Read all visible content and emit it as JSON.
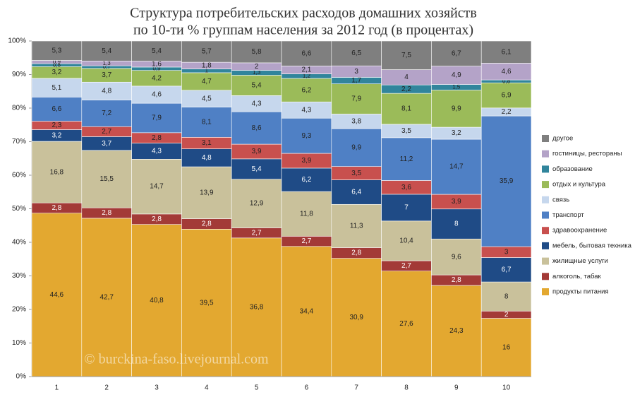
{
  "chart_data": {
    "type": "bar",
    "stacked": "percent",
    "title": "Структура потребительских расходов домашних хозяйств",
    "subtitle": "по 10-ти % группам населения за 2012 год (в процентах)",
    "watermark": "© burckina-faso.livejournal.com",
    "categories": [
      "1",
      "2",
      "3",
      "4",
      "5",
      "6",
      "7",
      "8",
      "9",
      "10"
    ],
    "ylim": [
      0,
      100
    ],
    "yticks": [
      {
        "value": 0,
        "label": "0%"
      },
      {
        "value": 10,
        "label": "10%"
      },
      {
        "value": 20,
        "label": "20%"
      },
      {
        "value": 30,
        "label": "30%"
      },
      {
        "value": 40,
        "label": "40%"
      },
      {
        "value": 50,
        "label": "50%"
      },
      {
        "value": 60,
        "label": "60%"
      },
      {
        "value": 70,
        "label": "70%"
      },
      {
        "value": 80,
        "label": "80%"
      },
      {
        "value": 90,
        "label": "90%"
      },
      {
        "value": 100,
        "label": "100%"
      }
    ],
    "legend": "right",
    "series": [
      {
        "name": "продукты питания",
        "color": "#e3a830",
        "values": [
          44.6,
          42.7,
          40.8,
          39.5,
          36.8,
          34.4,
          30.9,
          27.6,
          24.3,
          16
        ],
        "value_labels": [
          "44,6",
          "42,7",
          "40,8",
          "39,5",
          "36,8",
          "34,4",
          "30,9",
          "27,6",
          "24,3",
          "16"
        ]
      },
      {
        "name": "алкоголь, табак",
        "color": "#a33a37",
        "values": [
          2.8,
          2.8,
          2.8,
          2.8,
          2.7,
          2.7,
          2.8,
          2.7,
          2.8,
          2
        ],
        "value_labels": [
          "2,8",
          "2,8",
          "2,8",
          "2,8",
          "2,7",
          "2,7",
          "2,8",
          "2,7",
          "2,8",
          "2"
        ]
      },
      {
        "name": "жилищные услуги",
        "color": "#c9c19b",
        "values": [
          16.8,
          15.5,
          14.7,
          13.9,
          12.9,
          11.8,
          11.3,
          10.4,
          9.6,
          8
        ],
        "value_labels": [
          "16,8",
          "15,5",
          "14,7",
          "13,9",
          "12,9",
          "11,8",
          "11,3",
          "10,4",
          "9,6",
          "8"
        ]
      },
      {
        "name": "мебель, бытовая техника",
        "color": "#1f4b86",
        "values": [
          3.2,
          3.7,
          4.3,
          4.8,
          5.4,
          6.2,
          6.4,
          7,
          8,
          6.7
        ],
        "value_labels": [
          "3,2",
          "3,7",
          "4,3",
          "4,8",
          "5,4",
          "6,2",
          "6,4",
          "7",
          "8",
          "6,7"
        ]
      },
      {
        "name": "здравоохранение",
        "color": "#c8504e",
        "values": [
          2.3,
          2.7,
          2.8,
          3.1,
          3.9,
          3.9,
          3.5,
          3.6,
          3.9,
          3
        ],
        "value_labels": [
          "2,3",
          "2,7",
          "2,8",
          "3,1",
          "3,9",
          "3,9",
          "3,5",
          "3,6",
          "3,9",
          "3"
        ]
      },
      {
        "name": "транспорт",
        "color": "#4f80c5",
        "values": [
          6.6,
          7.2,
          7.9,
          8.1,
          8.6,
          9.3,
          9.9,
          11.2,
          14.7,
          35.9
        ],
        "value_labels": [
          "6,6",
          "7,2",
          "7,9",
          "8,1",
          "8,6",
          "9,3",
          "9,9",
          "11,2",
          "14,7",
          "35,9"
        ]
      },
      {
        "name": "связь",
        "color": "#c6d7ed",
        "values": [
          5.1,
          4.8,
          4.6,
          4.5,
          4.3,
          4.3,
          3.8,
          3.5,
          3.2,
          2.2
        ],
        "value_labels": [
          "5,1",
          "4,8",
          "4,6",
          "4,5",
          "4,3",
          "4,3",
          "3,8",
          "3,5",
          "3,2",
          "2,2"
        ]
      },
      {
        "name": "отдых и культура",
        "color": "#9bbb59",
        "values": [
          3.2,
          3.7,
          4.2,
          4.7,
          5.4,
          6.2,
          7.9,
          8.1,
          9.9,
          6.9
        ],
        "value_labels": [
          "3,2",
          "3,7",
          "4,2",
          "4,7",
          "5,4",
          "6,2",
          "7,9",
          "8,1",
          "9,9",
          "6,9"
        ]
      },
      {
        "name": "образование",
        "color": "#31859c",
        "values": [
          0.8,
          0.7,
          0.9,
          1,
          1.3,
          1.2,
          1.7,
          2.2,
          1.5,
          0.8
        ],
        "value_labels": [
          "0,8",
          "0,7",
          "0,9",
          "1",
          "1,3",
          "1,2",
          "1,7",
          "2,2",
          "1,5",
          "0,8"
        ]
      },
      {
        "name": "гостиницы, рестораны",
        "color": "#b4a3c8",
        "values": [
          0.9,
          1.3,
          1.6,
          1.8,
          2,
          2.1,
          3,
          4,
          4.9,
          4.6
        ],
        "value_labels": [
          "0,9",
          "1,3",
          "1,6",
          "1,8",
          "2",
          "2,1",
          "3",
          "4",
          "4,9",
          "4,6"
        ]
      },
      {
        "name": "другое",
        "color": "#7f7f7f",
        "values": [
          5.3,
          5.4,
          5.4,
          5.7,
          5.8,
          6.6,
          6.5,
          7.5,
          6.7,
          6.1
        ],
        "value_labels": [
          "5,3",
          "5,4",
          "5,4",
          "5,7",
          "5,8",
          "6,6",
          "6,5",
          "7,5",
          "6,7",
          "6,1"
        ]
      }
    ]
  }
}
